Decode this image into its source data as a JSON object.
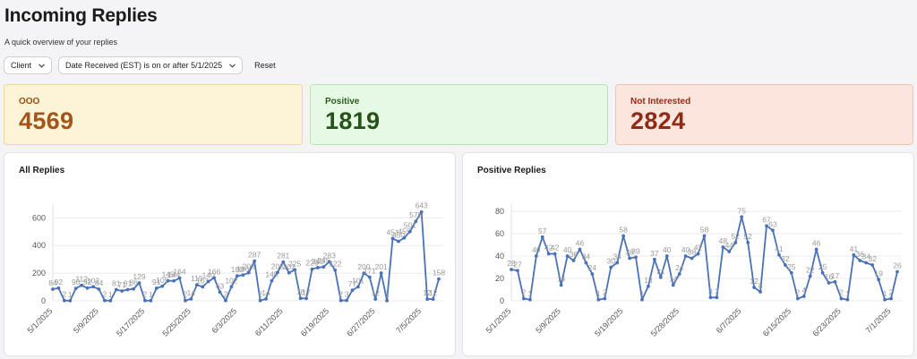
{
  "header": {
    "title": "Incoming Replies",
    "subtitle": "A quick overview of your replies"
  },
  "filters": {
    "client_label": "Client",
    "date_label": "Date Received (EST) is on or after 5/1/2025",
    "reset_label": "Reset"
  },
  "stats": [
    {
      "label": "OOO",
      "value": "4569",
      "bg": "#fdf3d6",
      "border": "#ead9a6",
      "label_color": "#9a4e0f",
      "value_color": "#a4561a"
    },
    {
      "label": "Positive",
      "value": "1819",
      "bg": "#e6f9e4",
      "border": "#b9e2b3",
      "label_color": "#2b5e1c",
      "value_color": "#27531a"
    },
    {
      "label": "Not Interested",
      "value": "2824",
      "bg": "#fbe5dc",
      "border": "#eec3b2",
      "label_color": "#9a2a18",
      "value_color": "#8f2a16"
    }
  ],
  "chart_data": [
    {
      "type": "line",
      "title": "All Replies",
      "ylim": [
        0,
        680
      ],
      "yticks": [
        0,
        200,
        400,
        600
      ],
      "xticks": [
        "5/1/2025",
        "5/9/2025",
        "5/17/2025",
        "5/25/2025",
        "6/3/2025",
        "6/11/2025",
        "6/19/2025",
        "6/27/2025",
        "7/5/2025"
      ],
      "xtick_index": [
        0,
        8,
        16,
        24,
        32,
        40,
        48,
        56,
        64
      ],
      "line_color": "#4a72b8",
      "grid": true,
      "values": [
        84,
        92,
        2,
        1,
        90,
        112,
        92,
        102,
        84,
        2,
        1,
        81,
        71,
        81,
        86,
        129,
        2,
        1,
        91,
        105,
        145,
        144,
        164,
        2,
        14,
        115,
        101,
        140,
        166,
        63,
        2,
        102,
        180,
        186,
        203,
        287,
        2,
        14,
        145,
        205,
        281,
        202,
        225,
        18,
        17,
        229,
        240,
        245,
        283,
        222,
        2,
        3,
        77,
        101,
        200,
        171,
        12,
        201,
        1,
        451,
        430,
        455,
        501,
        575,
        643,
        12,
        12,
        158
      ]
    },
    {
      "type": "line",
      "title": "Positive Replies",
      "ylim": [
        0,
        84
      ],
      "yticks": [
        0,
        20,
        40,
        60,
        80
      ],
      "xticks": [
        "5/1/2025",
        "5/9/2025",
        "5/19/2025",
        "5/28/2025",
        "6/7/2025",
        "6/15/2025",
        "6/23/2025",
        "7/1/2025"
      ],
      "xtick_index": [
        0,
        8,
        18,
        27,
        37,
        45,
        53,
        61
      ],
      "line_color": "#4a72b8",
      "grid": true,
      "values": [
        28,
        27,
        2,
        1,
        40,
        57,
        42,
        42,
        14,
        40,
        36,
        46,
        34,
        24,
        1,
        2,
        30,
        34,
        58,
        38,
        39,
        1,
        13,
        37,
        21,
        40,
        14,
        24,
        40,
        38,
        42,
        58,
        3,
        3,
        48,
        44,
        52,
        75,
        52,
        12,
        8,
        67,
        63,
        41,
        32,
        25,
        2,
        4,
        22,
        46,
        25,
        16,
        17,
        2,
        1,
        41,
        36,
        34,
        32,
        19,
        1,
        2,
        26
      ]
    }
  ]
}
